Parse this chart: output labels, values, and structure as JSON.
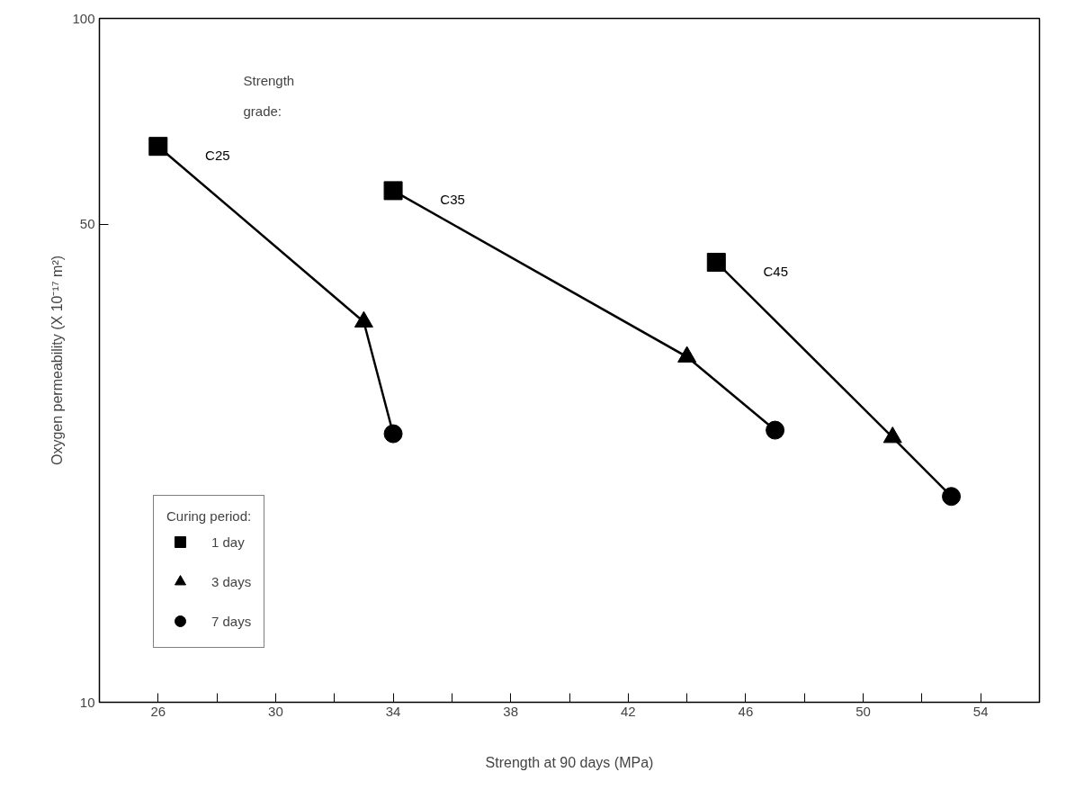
{
  "chart_data": {
    "type": "line",
    "xlabel": "Strength at 90 days (MPa)",
    "ylabel": "Oxygen permeability (X 10⁻¹⁷ m²)",
    "annotations": [
      "Strength grade:"
    ],
    "legend_title": "Curing period:",
    "legend": "bottom left",
    "log": "y",
    "grid": false,
    "xlim": [
      24,
      56
    ],
    "xticks": [
      26,
      {
        "value": 28,
        "label": null
      },
      30,
      {
        "value": 32,
        "label": null
      },
      34,
      {
        "value": 36,
        "label": null
      },
      38,
      {
        "value": 40,
        "label": null
      },
      42,
      {
        "value": 44,
        "label": null
      },
      46,
      {
        "value": 48,
        "label": null
      },
      50,
      {
        "value": 52,
        "label": null
      },
      54
    ],
    "ylim": [
      10,
      100
    ],
    "yticks": [
      10,
      50,
      100
    ],
    "series": [
      {
        "name": "C25",
        "marker": "none",
        "color": "#000000",
        "x": [
          26,
          33,
          34
        ],
        "values": [
          65,
          36,
          24.7
        ]
      },
      {
        "name": "C35",
        "marker": "none",
        "color": "#000000",
        "x": [
          34,
          44,
          47
        ],
        "values": [
          56,
          32,
          25
        ]
      },
      {
        "name": "C45",
        "marker": "none",
        "color": "#000000",
        "x": [
          45,
          51,
          53
        ],
        "values": [
          44,
          24.4,
          20
        ]
      },
      {
        "name": "1 day",
        "type": "scatter",
        "marker": "square",
        "color": "#000000",
        "x": [
          26,
          34,
          45
        ],
        "values": [
          65,
          56,
          44
        ]
      },
      {
        "name": "3 days",
        "type": "scatter",
        "marker": "triangle",
        "color": "#000000",
        "x": [
          33,
          44,
          51
        ],
        "values": [
          36,
          32,
          24.4
        ]
      },
      {
        "name": "7 days",
        "type": "scatter",
        "marker": "circle",
        "color": "#000000",
        "x": [
          34,
          47,
          53
        ],
        "values": [
          24.7,
          25,
          20
        ]
      }
    ]
  }
}
